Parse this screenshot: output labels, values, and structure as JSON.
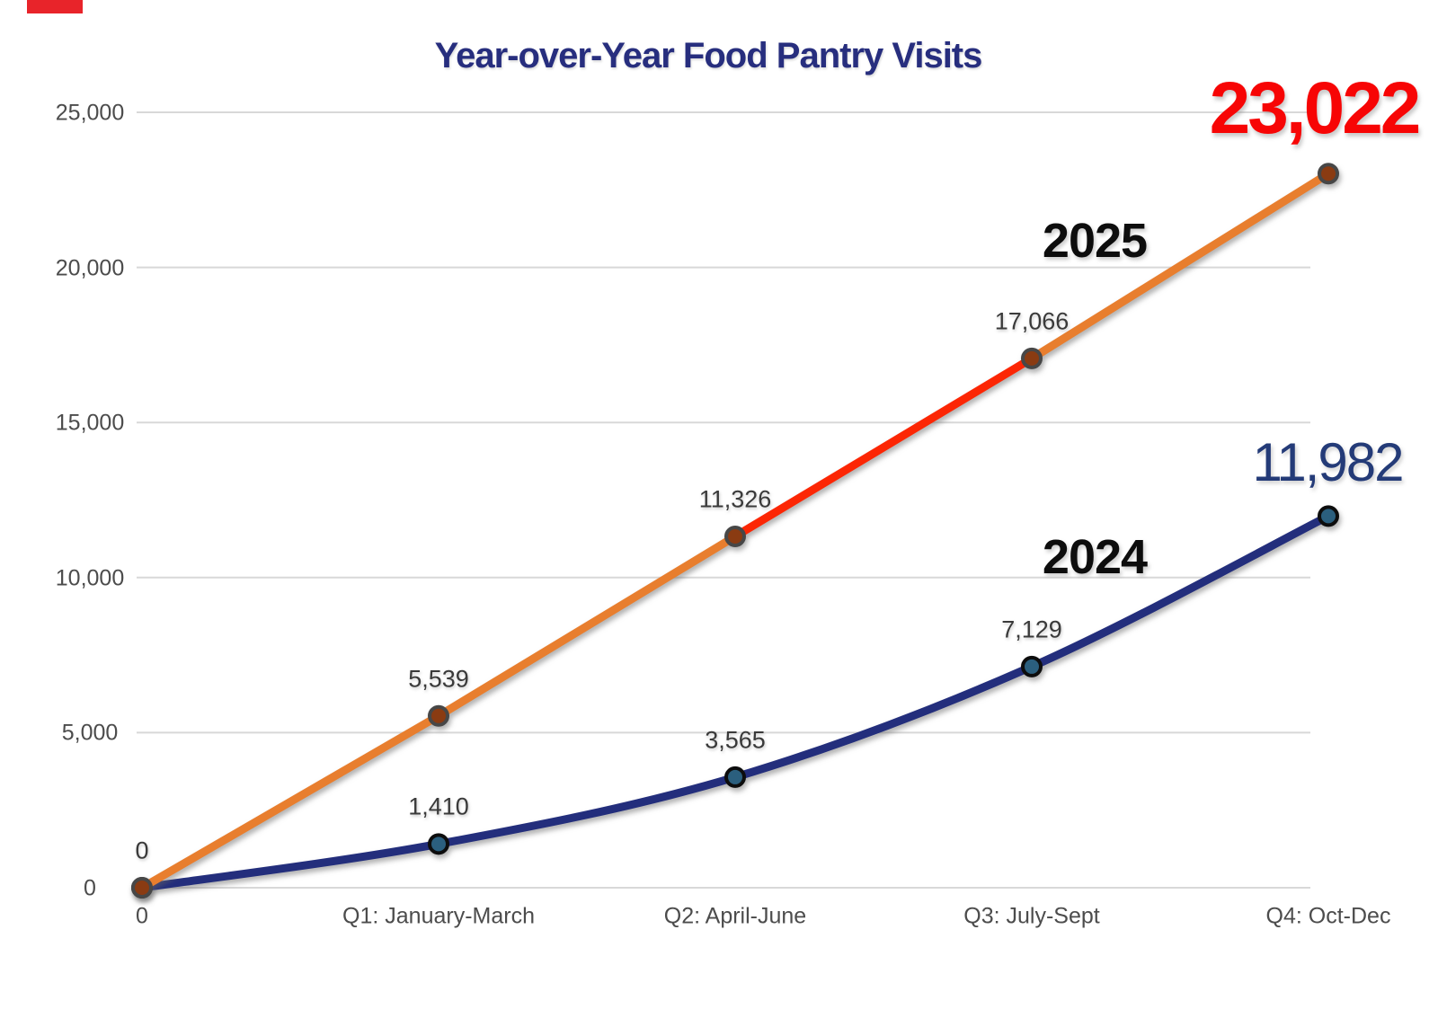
{
  "page": {
    "background": "#FFFFFF",
    "corner_accent_color": "#E8242A"
  },
  "chart_data": {
    "type": "line",
    "title": "Year-over-Year Food Pantry Visits",
    "title_color": "#272E7E",
    "categories": [
      "0",
      "Q1: January-March",
      "Q2: April-June",
      "Q3: July-Sept",
      "Q4: Oct-Dec"
    ],
    "y_tick_labels": [
      "0",
      "5,000",
      "10,000",
      "15,000",
      "20,000",
      "25,000"
    ],
    "y_tick_values": [
      0,
      5000,
      10000,
      15000,
      20000,
      25000
    ],
    "ylim": [
      0,
      25000
    ],
    "grid": true,
    "legend_position": "inline-labels",
    "gridline_color": "#D8D8D8",
    "axis_tick_color": "#4C4C4C",
    "data_label_color": "#3A3A3A",
    "series": [
      {
        "name": "2025",
        "values": [
          0,
          5539,
          11326,
          17066,
          23022
        ],
        "labels": [
          "0",
          "5,539",
          "11,326",
          "17,066",
          "23,022"
        ],
        "line_color": "#E87E2E",
        "highlight_segment": {
          "from_index": 2,
          "to_index": 3,
          "color": "#FC2604"
        },
        "marker_fill": "#8A3B12",
        "marker_stroke": "#474747",
        "name_label_color": "#0D0D0D",
        "show_first_label": true,
        "smooth": false,
        "final_label": {
          "text": "23,022",
          "color": "#F70505",
          "bold": true
        }
      },
      {
        "name": "2024",
        "values": [
          0,
          1410,
          3565,
          7129,
          11982
        ],
        "labels": [
          "0",
          "1,410",
          "3,565",
          "7,129",
          "11,982"
        ],
        "line_color": "#232E7C",
        "marker_fill": "#2B5F7E",
        "marker_stroke": "#0D0D0D",
        "name_label_color": "#0D0D0D",
        "show_first_label": false,
        "smooth": true,
        "final_label": {
          "text": "11,982",
          "color": "#243B78",
          "bold": false
        }
      }
    ]
  }
}
